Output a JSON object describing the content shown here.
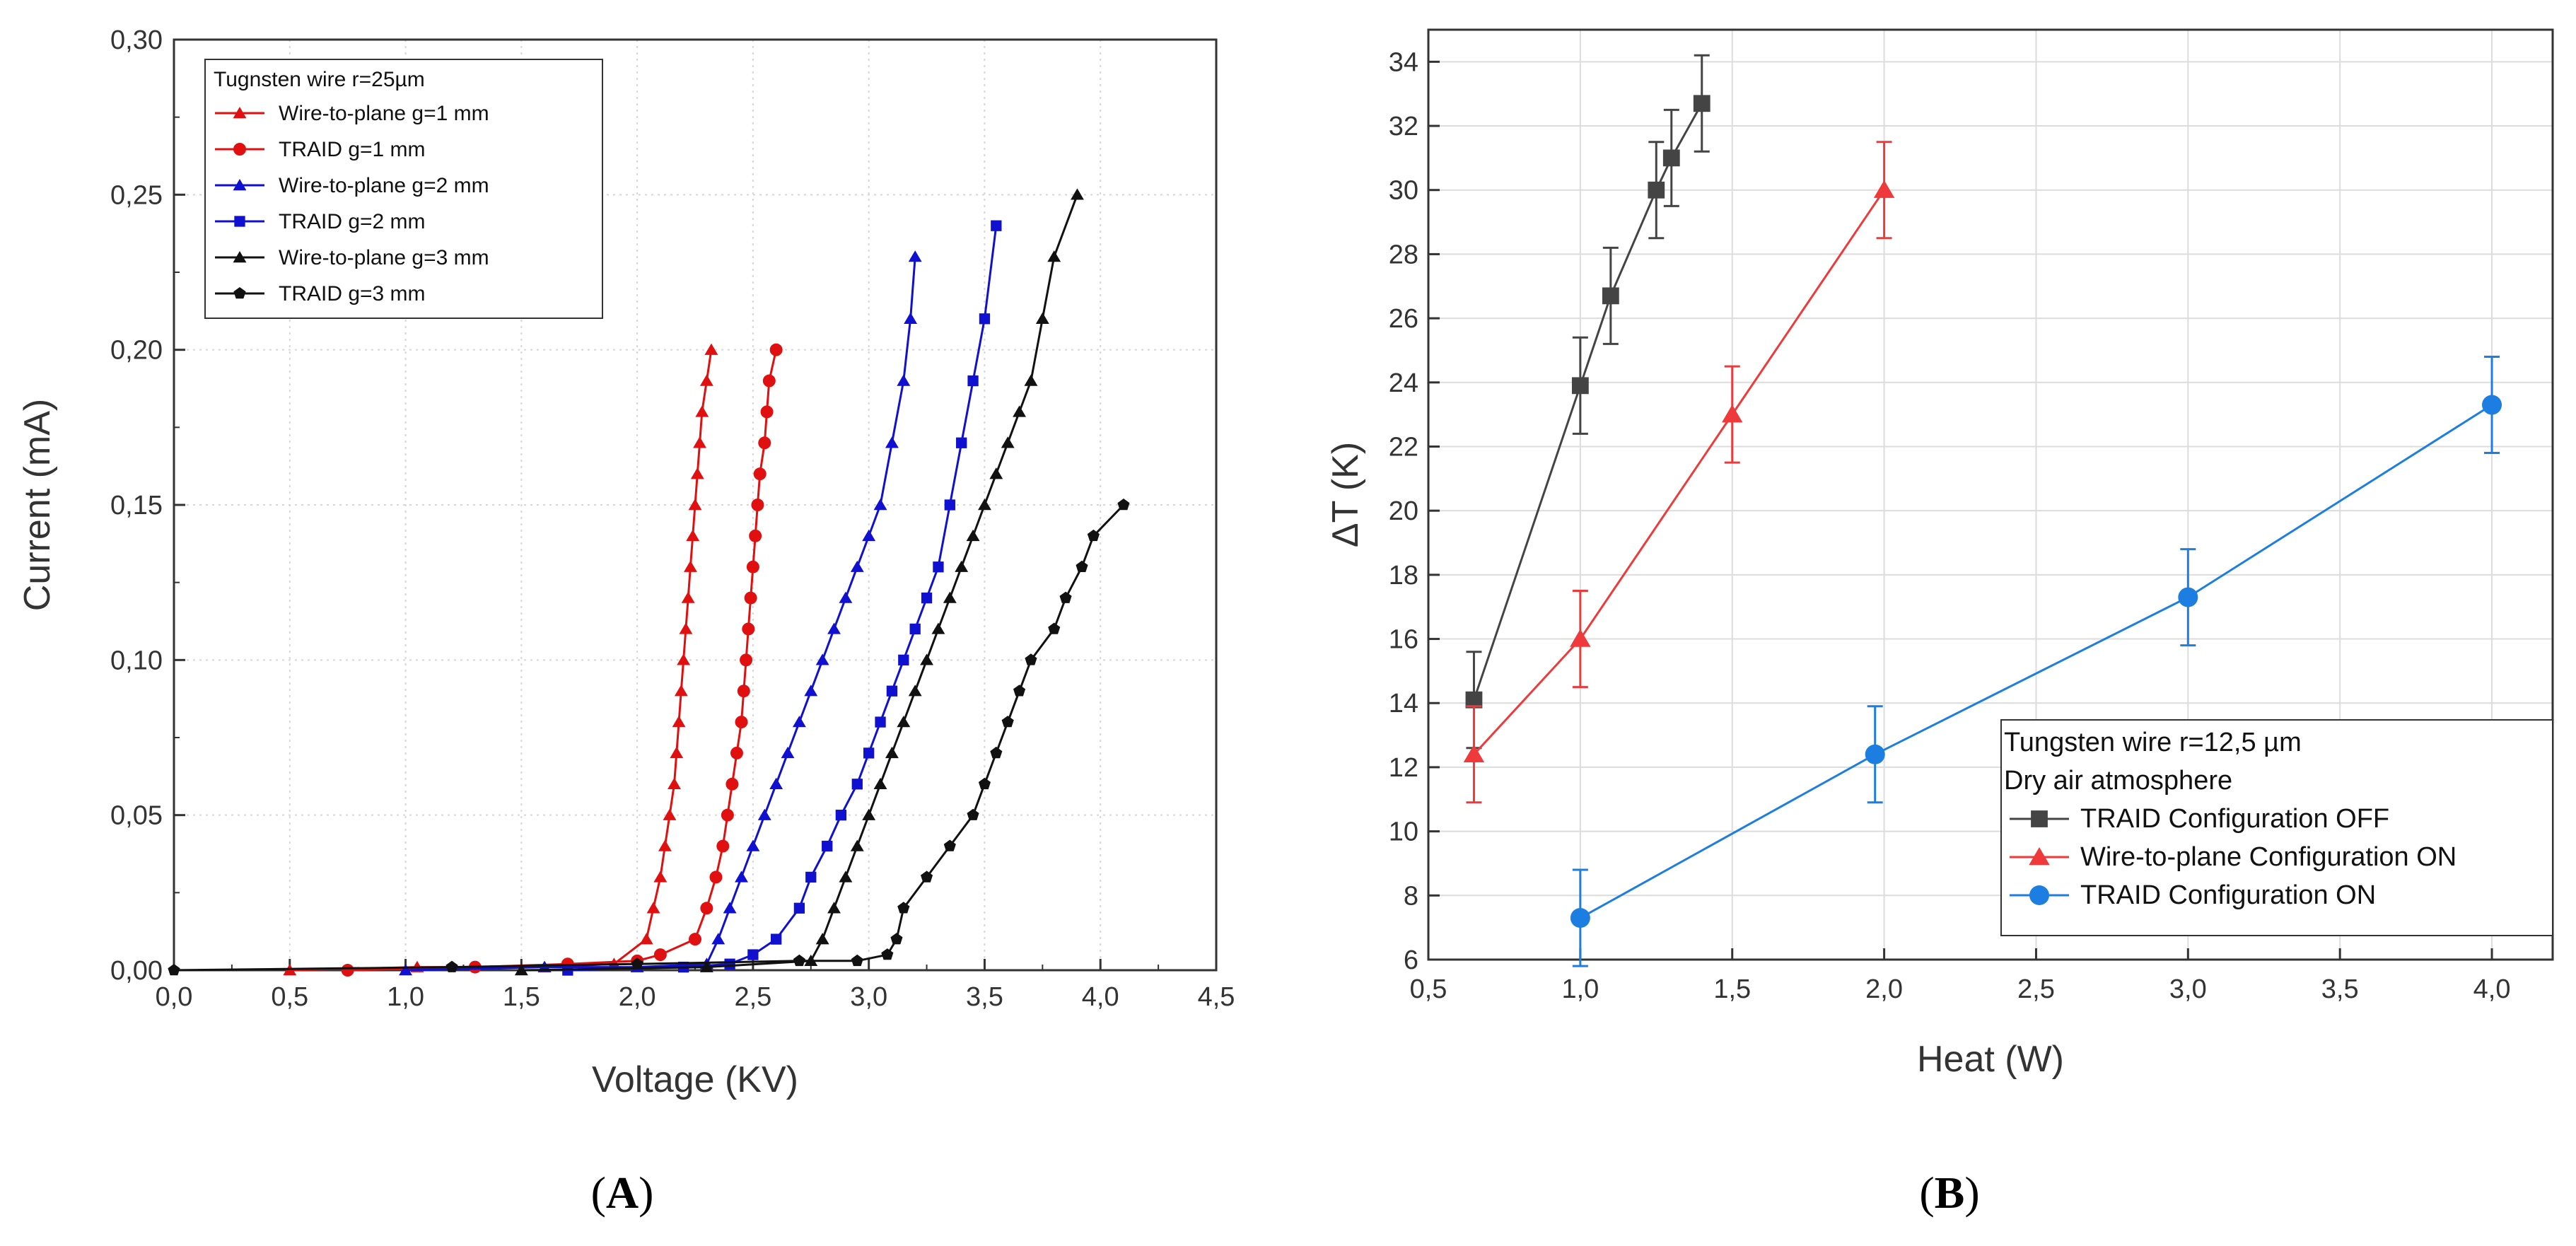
{
  "panels": {
    "A": "A",
    "B": "B"
  },
  "chart_data": [
    {
      "type": "line",
      "xlabel": "Voltage (KV)",
      "ylabel": "Current (mA)",
      "xlim": [
        0,
        4.5
      ],
      "ylim": [
        0,
        0.3
      ],
      "xticks": [
        "0,0",
        "0,5",
        "1,0",
        "1,5",
        "2,0",
        "2,5",
        "3,0",
        "3,5",
        "4,0",
        "4,5"
      ],
      "yticks": [
        "0,00",
        "0,05",
        "0,10",
        "0,15",
        "0,20",
        "0,25",
        "0,30"
      ],
      "legend_title": "Tugnsten wire r=25µm",
      "legend_position": "top-left",
      "series": [
        {
          "name": "Wire-to-plane g=1 mm",
          "color": "#e01010",
          "marker": "triangle",
          "points": [
            [
              0.5,
              0
            ],
            [
              1.05,
              0.001
            ],
            [
              1.6,
              0.001
            ],
            [
              1.9,
              0.002
            ],
            [
              2.04,
              0.01
            ],
            [
              2.07,
              0.02
            ],
            [
              2.1,
              0.03
            ],
            [
              2.12,
              0.04
            ],
            [
              2.14,
              0.05
            ],
            [
              2.16,
              0.06
            ],
            [
              2.17,
              0.07
            ],
            [
              2.18,
              0.08
            ],
            [
              2.19,
              0.09
            ],
            [
              2.2,
              0.1
            ],
            [
              2.21,
              0.11
            ],
            [
              2.22,
              0.12
            ],
            [
              2.23,
              0.13
            ],
            [
              2.24,
              0.14
            ],
            [
              2.25,
              0.15
            ],
            [
              2.26,
              0.16
            ],
            [
              2.27,
              0.17
            ],
            [
              2.28,
              0.18
            ],
            [
              2.3,
              0.19
            ],
            [
              2.32,
              0.2
            ]
          ]
        },
        {
          "name": "TRAID g=1 mm",
          "color": "#e01010",
          "marker": "circle",
          "points": [
            [
              0.75,
              0
            ],
            [
              1.3,
              0.001
            ],
            [
              1.7,
              0.002
            ],
            [
              2.0,
              0.003
            ],
            [
              2.1,
              0.005
            ],
            [
              2.25,
              0.01
            ],
            [
              2.3,
              0.02
            ],
            [
              2.34,
              0.03
            ],
            [
              2.37,
              0.04
            ],
            [
              2.39,
              0.05
            ],
            [
              2.41,
              0.06
            ],
            [
              2.43,
              0.07
            ],
            [
              2.45,
              0.08
            ],
            [
              2.46,
              0.09
            ],
            [
              2.47,
              0.1
            ],
            [
              2.48,
              0.11
            ],
            [
              2.49,
              0.12
            ],
            [
              2.5,
              0.13
            ],
            [
              2.51,
              0.14
            ],
            [
              2.52,
              0.15
            ],
            [
              2.53,
              0.16
            ],
            [
              2.55,
              0.17
            ],
            [
              2.56,
              0.18
            ],
            [
              2.57,
              0.19
            ],
            [
              2.6,
              0.2
            ]
          ]
        },
        {
          "name": "Wire-to-plane g=2 mm",
          "color": "#1010d0",
          "marker": "triangle",
          "points": [
            [
              1.0,
              0
            ],
            [
              1.6,
              0.001
            ],
            [
              2.0,
              0.001
            ],
            [
              2.3,
              0.002
            ],
            [
              2.35,
              0.01
            ],
            [
              2.4,
              0.02
            ],
            [
              2.45,
              0.03
            ],
            [
              2.5,
              0.04
            ],
            [
              2.55,
              0.05
            ],
            [
              2.6,
              0.06
            ],
            [
              2.65,
              0.07
            ],
            [
              2.7,
              0.08
            ],
            [
              2.75,
              0.09
            ],
            [
              2.8,
              0.1
            ],
            [
              2.85,
              0.11
            ],
            [
              2.9,
              0.12
            ],
            [
              2.95,
              0.13
            ],
            [
              3.0,
              0.14
            ],
            [
              3.05,
              0.15
            ],
            [
              3.1,
              0.17
            ],
            [
              3.15,
              0.19
            ],
            [
              3.18,
              0.21
            ],
            [
              3.2,
              0.23
            ]
          ]
        },
        {
          "name": "TRAID g=2 mm",
          "color": "#1010d0",
          "marker": "square",
          "points": [
            [
              1.7,
              0
            ],
            [
              2.2,
              0.001
            ],
            [
              2.4,
              0.002
            ],
            [
              2.5,
              0.005
            ],
            [
              2.6,
              0.01
            ],
            [
              2.7,
              0.02
            ],
            [
              2.75,
              0.03
            ],
            [
              2.82,
              0.04
            ],
            [
              2.88,
              0.05
            ],
            [
              2.95,
              0.06
            ],
            [
              3.0,
              0.07
            ],
            [
              3.05,
              0.08
            ],
            [
              3.1,
              0.09
            ],
            [
              3.15,
              0.1
            ],
            [
              3.2,
              0.11
            ],
            [
              3.25,
              0.12
            ],
            [
              3.3,
              0.13
            ],
            [
              3.35,
              0.15
            ],
            [
              3.4,
              0.17
            ],
            [
              3.45,
              0.19
            ],
            [
              3.5,
              0.21
            ],
            [
              3.55,
              0.24
            ]
          ]
        },
        {
          "name": "Wire-to-plane g=3 mm",
          "color": "#111111",
          "marker": "triangle",
          "points": [
            [
              1.5,
              0
            ],
            [
              2.3,
              0.001
            ],
            [
              2.75,
              0.003
            ],
            [
              2.8,
              0.01
            ],
            [
              2.85,
              0.02
            ],
            [
              2.9,
              0.03
            ],
            [
              2.95,
              0.04
            ],
            [
              3.0,
              0.05
            ],
            [
              3.05,
              0.06
            ],
            [
              3.1,
              0.07
            ],
            [
              3.15,
              0.08
            ],
            [
              3.2,
              0.09
            ],
            [
              3.25,
              0.1
            ],
            [
              3.3,
              0.11
            ],
            [
              3.35,
              0.12
            ],
            [
              3.4,
              0.13
            ],
            [
              3.45,
              0.14
            ],
            [
              3.5,
              0.15
            ],
            [
              3.55,
              0.16
            ],
            [
              3.6,
              0.17
            ],
            [
              3.65,
              0.18
            ],
            [
              3.7,
              0.19
            ],
            [
              3.75,
              0.21
            ],
            [
              3.8,
              0.23
            ],
            [
              3.9,
              0.25
            ]
          ]
        },
        {
          "name": "TRAID g=3 mm",
          "color": "#111111",
          "marker": "pentagon",
          "points": [
            [
              0.0,
              0
            ],
            [
              1.2,
              0.001
            ],
            [
              2.0,
              0.002
            ],
            [
              2.7,
              0.003
            ],
            [
              2.95,
              0.003
            ],
            [
              3.08,
              0.005
            ],
            [
              3.12,
              0.01
            ],
            [
              3.15,
              0.02
            ],
            [
              3.25,
              0.03
            ],
            [
              3.35,
              0.04
            ],
            [
              3.45,
              0.05
            ],
            [
              3.5,
              0.06
            ],
            [
              3.55,
              0.07
            ],
            [
              3.6,
              0.08
            ],
            [
              3.65,
              0.09
            ],
            [
              3.7,
              0.1
            ],
            [
              3.8,
              0.11
            ],
            [
              3.85,
              0.12
            ],
            [
              3.92,
              0.13
            ],
            [
              3.97,
              0.14
            ],
            [
              4.1,
              0.15
            ]
          ]
        }
      ]
    },
    {
      "type": "line",
      "xlabel": "Heat (W)",
      "ylabel": "ΔT (K)",
      "xlim": [
        0.5,
        4.2
      ],
      "ylim": [
        6,
        35
      ],
      "xticks": [
        "0,5",
        "1,0",
        "1,5",
        "2,0",
        "2,5",
        "3,0",
        "3,5",
        "4,0"
      ],
      "yticks": [
        "6",
        "8",
        "10",
        "12",
        "14",
        "16",
        "18",
        "20",
        "22",
        "24",
        "26",
        "28",
        "30",
        "32",
        "34"
      ],
      "legend_title": [
        "Tungsten wire r=12,5 µm",
        "Dry air atmosphere"
      ],
      "legend_position": "bottom-right",
      "series": [
        {
          "name": "TRAID Configuration OFF",
          "color": "#444444",
          "marker": "square",
          "points": [
            [
              0.65,
              14.1,
              1.5
            ],
            [
              1.0,
              23.9,
              1.5
            ],
            [
              1.1,
              26.7,
              1.5
            ],
            [
              1.25,
              30.0,
              1.5
            ],
            [
              1.3,
              31.0,
              1.5
            ],
            [
              1.4,
              32.7,
              1.5
            ]
          ]
        },
        {
          "name": "Wire-to-plane Configuration ON",
          "color": "#ee3a3a",
          "marker": "triangle",
          "points": [
            [
              0.65,
              12.4,
              1.5
            ],
            [
              1.0,
              16.0,
              1.5
            ],
            [
              1.5,
              23.0,
              1.5
            ],
            [
              2.0,
              30.0,
              1.5
            ]
          ]
        },
        {
          "name": "TRAID Configuration ON",
          "color": "#1c7ee0",
          "marker": "circle",
          "points": [
            [
              1.0,
              7.3,
              1.5
            ],
            [
              1.97,
              12.4,
              1.5
            ],
            [
              3.0,
              17.3,
              1.5
            ],
            [
              4.0,
              23.3,
              1.5
            ]
          ]
        }
      ]
    }
  ]
}
